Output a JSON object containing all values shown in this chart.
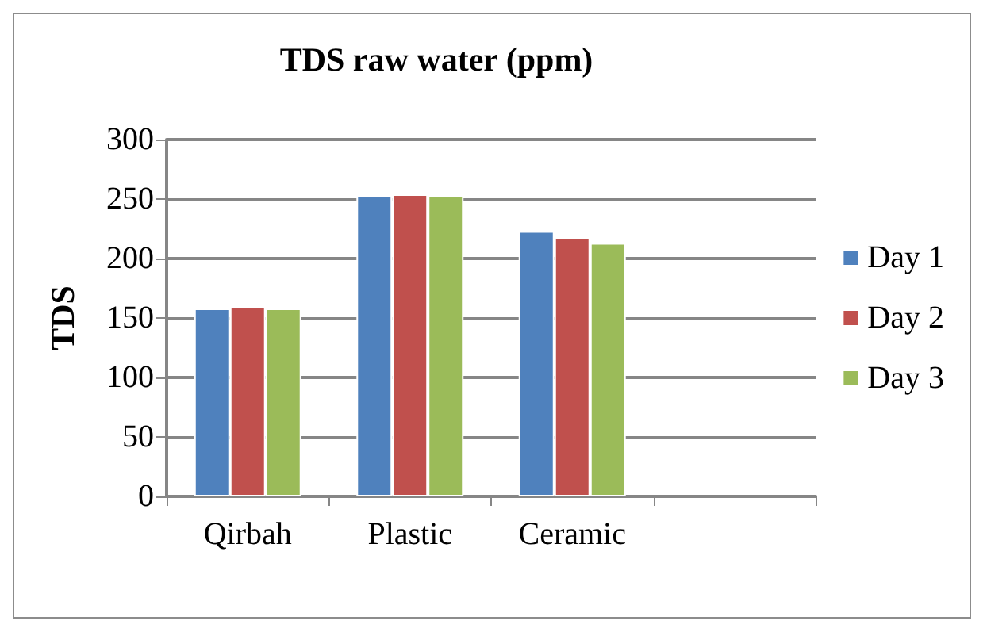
{
  "chart_data": {
    "type": "bar",
    "title": "TDS raw water (ppm)",
    "ylabel": "TDS",
    "categories": [
      "Qirbah",
      "Plastic",
      "Ceramic",
      null
    ],
    "series": [
      {
        "name": "Day 1",
        "color": "#4f81bd",
        "values": [
          158,
          253,
          223,
          null
        ]
      },
      {
        "name": "Day 2",
        "color": "#c0504d",
        "values": [
          160,
          254,
          218,
          null
        ]
      },
      {
        "name": "Day 3",
        "color": "#9bbb59",
        "values": [
          158,
          253,
          213,
          null
        ]
      }
    ],
    "ylim": [
      0,
      300
    ],
    "yticks": [
      0,
      50,
      100,
      150,
      200,
      250,
      300
    ],
    "grid": "y",
    "legend": "right"
  }
}
